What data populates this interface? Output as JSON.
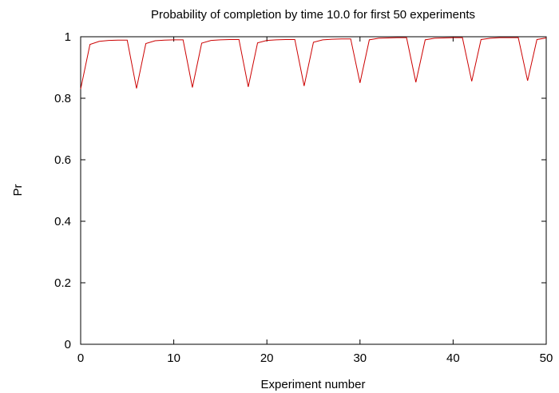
{
  "chart_data": {
    "type": "line",
    "title": "Probability of completion by time 10.0 for first 50 experiments",
    "xlabel": "Experiment number",
    "ylabel": "Pr",
    "xlim": [
      0,
      50
    ],
    "ylim": [
      0,
      1
    ],
    "xticks": [
      "0",
      "10",
      "20",
      "30",
      "40",
      "50"
    ],
    "yticks": [
      "0",
      "0.2",
      "0.4",
      "0.6",
      "0.8",
      "1"
    ],
    "grid": false,
    "legend": "none",
    "series": [
      {
        "color": "#cc0000",
        "x": [
          0,
          1,
          2,
          3,
          4,
          5,
          6,
          7,
          8,
          9,
          10,
          11,
          12,
          13,
          14,
          15,
          16,
          17,
          18,
          19,
          20,
          21,
          22,
          23,
          24,
          25,
          26,
          27,
          28,
          29,
          30,
          31,
          32,
          33,
          34,
          35,
          36,
          37,
          38,
          39,
          40,
          41,
          42,
          43,
          44,
          45,
          46,
          47,
          48,
          49,
          50
        ],
        "y": [
          0.83,
          0.975,
          0.985,
          0.988,
          0.989,
          0.989,
          0.832,
          0.978,
          0.987,
          0.989,
          0.99,
          0.99,
          0.835,
          0.979,
          0.988,
          0.99,
          0.991,
          0.991,
          0.837,
          0.98,
          0.988,
          0.99,
          0.991,
          0.991,
          0.84,
          0.982,
          0.99,
          0.992,
          0.993,
          0.993,
          0.85,
          0.99,
          0.995,
          0.996,
          0.997,
          0.997,
          0.852,
          0.99,
          0.995,
          0.996,
          0.997,
          0.997,
          0.855,
          0.991,
          0.995,
          0.997,
          0.997,
          0.997,
          0.857,
          0.991,
          0.996
        ]
      }
    ]
  }
}
